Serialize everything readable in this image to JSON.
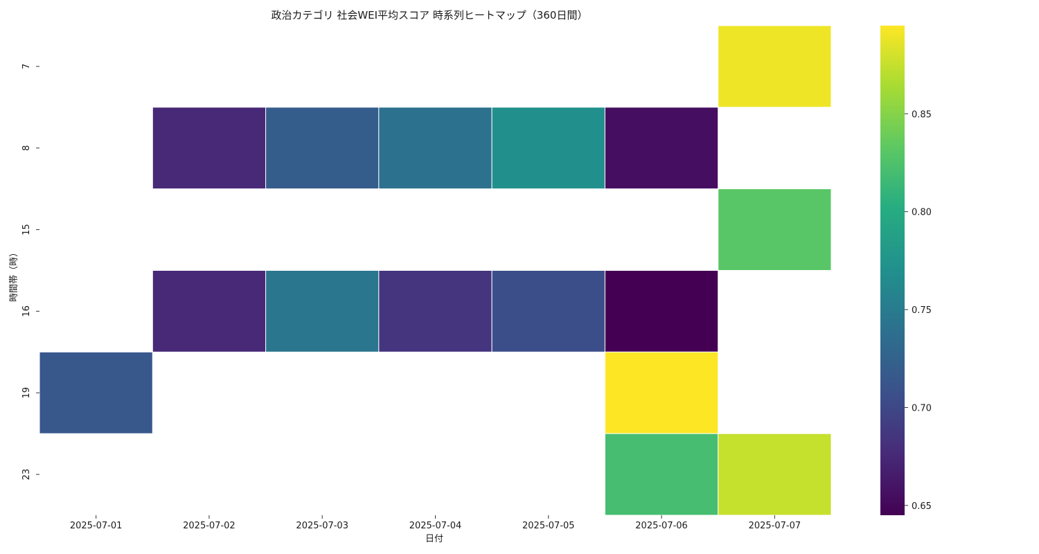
{
  "chart_data": {
    "type": "heatmap",
    "title": "政治カテゴリ 社会WEI平均スコア 時系列ヒートマップ（360日間）",
    "xlabel": "日付",
    "ylabel": "時間帯（時）",
    "x_categories": [
      "2025-07-01",
      "2025-07-02",
      "2025-07-03",
      "2025-07-04",
      "2025-07-05",
      "2025-07-06",
      "2025-07-07"
    ],
    "y_categories": [
      "7",
      "8",
      "15",
      "16",
      "19",
      "23"
    ],
    "values": [
      [
        null,
        null,
        null,
        null,
        null,
        null,
        0.89
      ],
      [
        null,
        0.675,
        0.72,
        0.74,
        0.77,
        0.655,
        null
      ],
      [
        null,
        null,
        null,
        null,
        null,
        null,
        0.83
      ],
      [
        null,
        0.675,
        0.745,
        0.685,
        0.705,
        0.645,
        null
      ],
      [
        0.715,
        null,
        null,
        null,
        null,
        0.895,
        null
      ],
      [
        null,
        null,
        null,
        null,
        null,
        0.82,
        0.875
      ]
    ],
    "colormap": "viridis",
    "colorbar": {
      "vmin": 0.645,
      "vmax": 0.895,
      "ticks": [
        0.65,
        0.7,
        0.75,
        0.8,
        0.85
      ],
      "tick_labels": [
        "0.65",
        "0.70",
        "0.75",
        "0.80",
        "0.85"
      ]
    },
    "missing_color": "#ffffff",
    "cell_border_color": "#ffffff"
  }
}
